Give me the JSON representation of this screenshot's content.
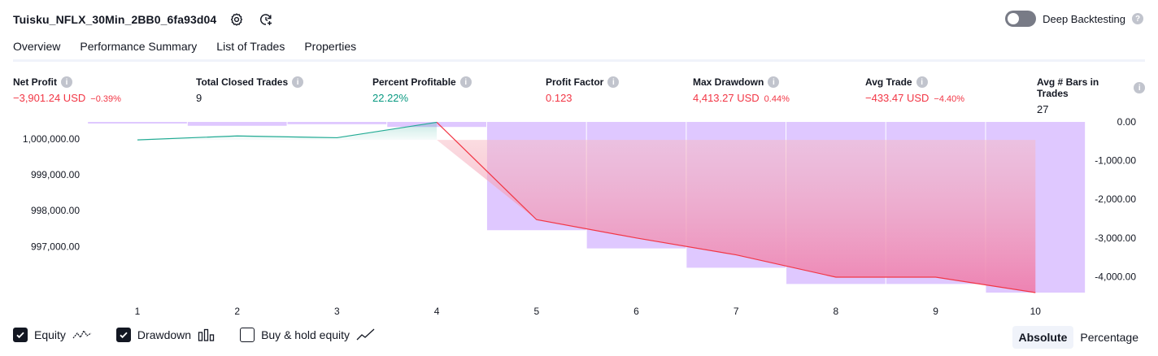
{
  "header": {
    "title": "Tuisku_NFLX_30Min_2BB0_6fa93d04",
    "deep_backtesting_label": "Deep Backtesting"
  },
  "tabs": [
    {
      "label": "Overview"
    },
    {
      "label": "Performance Summary"
    },
    {
      "label": "List of Trades"
    },
    {
      "label": "Properties"
    }
  ],
  "metrics": {
    "net_profit": {
      "label": "Net Profit",
      "value": "−3,901.24 USD",
      "pct": "−0.39%"
    },
    "total_closed_trades": {
      "label": "Total Closed Trades",
      "value": "9"
    },
    "percent_profitable": {
      "label": "Percent Profitable",
      "value": "22.22%"
    },
    "profit_factor": {
      "label": "Profit Factor",
      "value": "0.123"
    },
    "max_drawdown": {
      "label": "Max Drawdown",
      "value": "4,413.27 USD",
      "pct": "0.44%"
    },
    "avg_trade": {
      "label": "Avg Trade",
      "value": "−433.47 USD",
      "pct": "−4.40%"
    },
    "avg_bars": {
      "label": "Avg # Bars in Trades",
      "value": "27"
    }
  },
  "chart_data": {
    "type": "line",
    "x": [
      1,
      2,
      3,
      4,
      5,
      6,
      7,
      8,
      9,
      10
    ],
    "series": [
      {
        "name": "Equity",
        "values": [
          999970,
          1000080,
          1000030,
          1000460,
          997750,
          997240,
          996770,
          996150,
          996150,
          995720
        ]
      },
      {
        "name": "Drawdown",
        "type": "bar",
        "values": [
          -10,
          -100,
          -60,
          -130,
          -2800,
          -3270,
          -3770,
          -4190,
          -4190,
          -4413
        ]
      }
    ],
    "left_axis": {
      "ticks": [
        1000000,
        999000,
        998000,
        997000
      ],
      "tick_labels": [
        "1,000,000.00",
        "999,000.00",
        "998,000.00",
        "997,000.00"
      ],
      "ylim": [
        995720,
        1000470
      ]
    },
    "right_axis": {
      "ticks": [
        0,
        -1000,
        -2000,
        -3000,
        -4000
      ],
      "tick_labels": [
        "0.00",
        "-1,000.00",
        "-2,000.00",
        "-3,000.00",
        "-4,000.00"
      ],
      "ylim": [
        -4413,
        0
      ]
    },
    "x_tick_labels": [
      "1",
      "2",
      "3",
      "4",
      "5",
      "6",
      "7",
      "8",
      "9",
      "10"
    ],
    "colors": {
      "equity_up": "#22ab94",
      "equity_down": "#f23645",
      "drawdown_bar": "#c9a3ff",
      "drawdown_fill": "#ee7fae"
    }
  },
  "legend": {
    "equity_label": "Equity",
    "drawdown_label": "Drawdown",
    "buy_hold_label": "Buy & hold equity"
  },
  "mode": {
    "absolute_label": "Absolute",
    "percentage_label": "Percentage"
  }
}
